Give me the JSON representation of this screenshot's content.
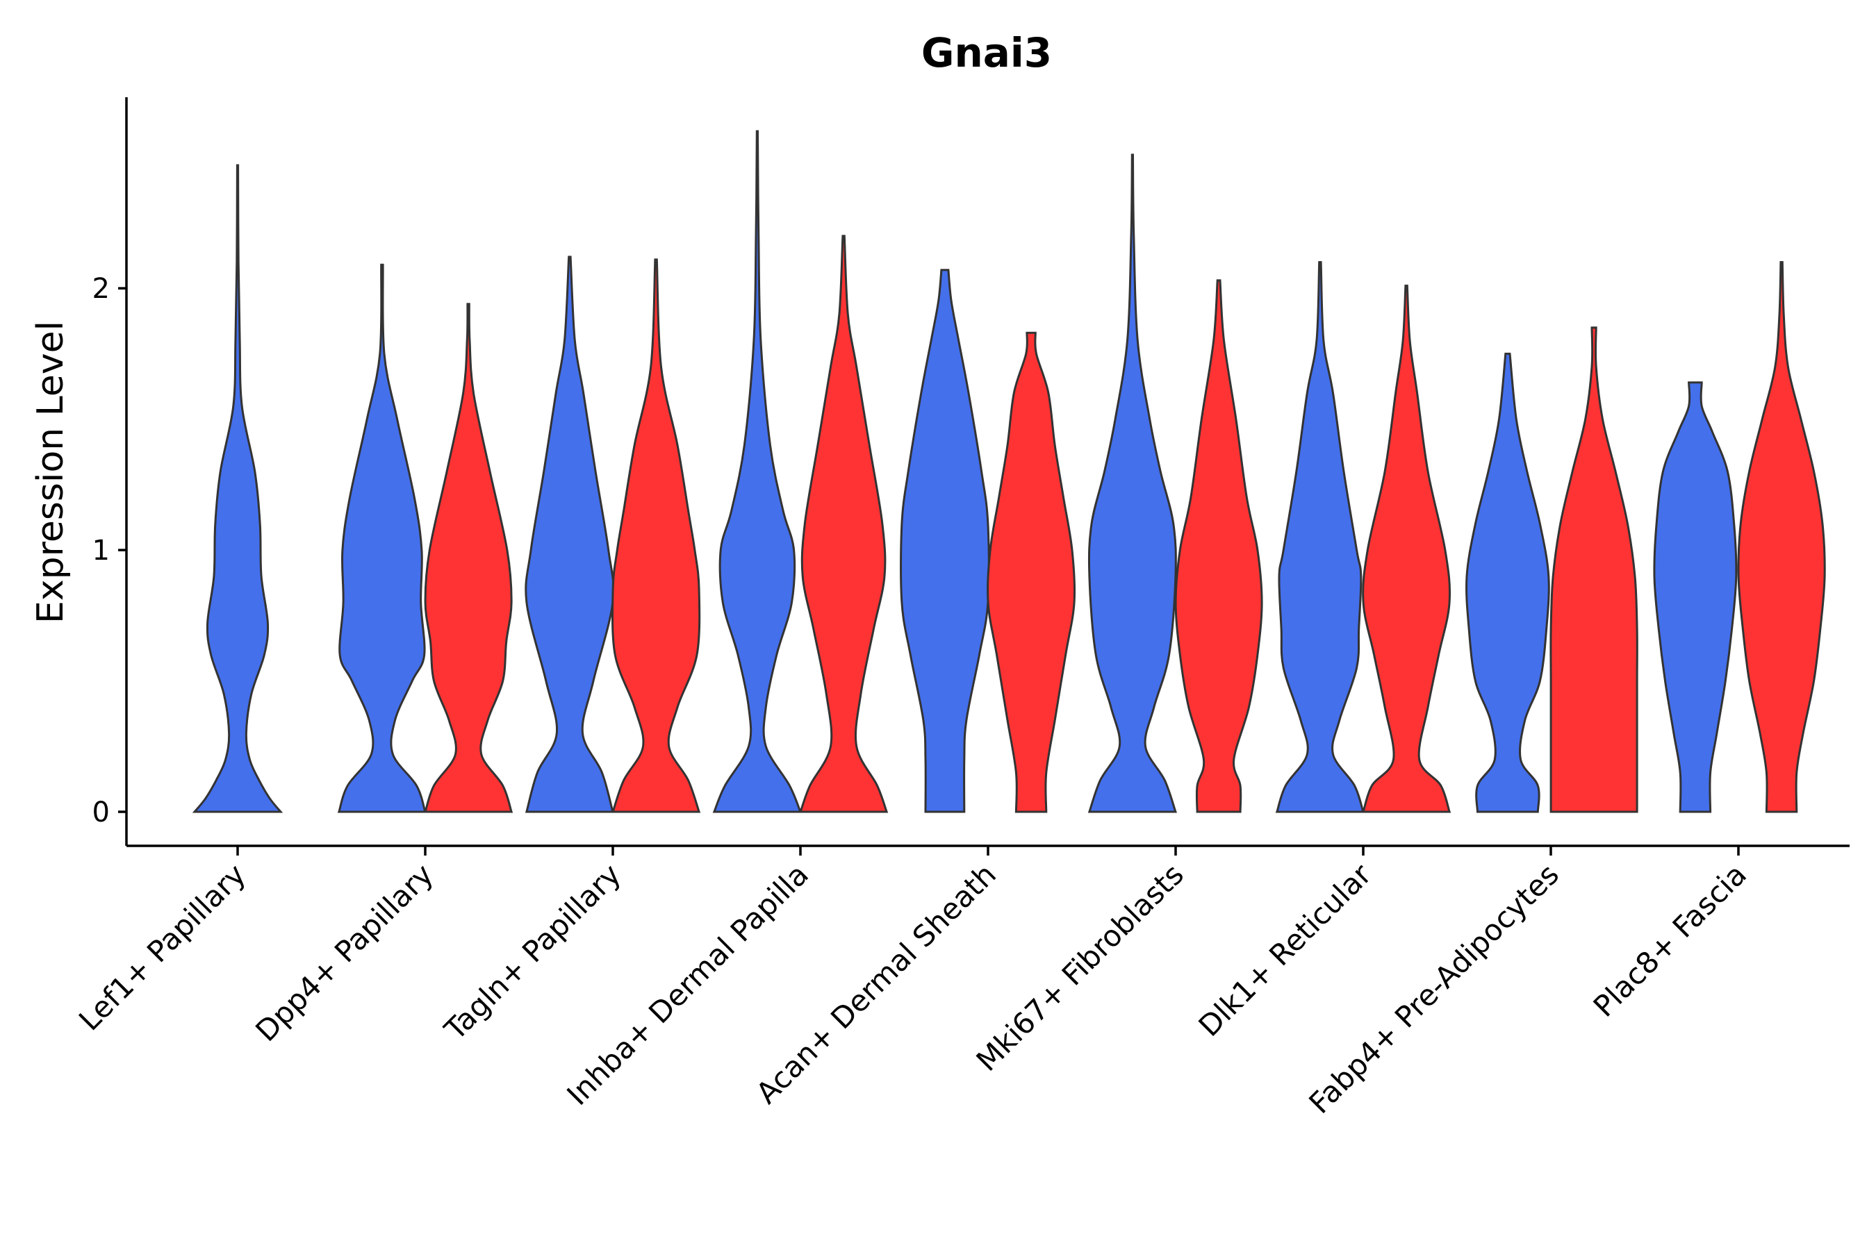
{
  "chart_data": {
    "type": "violin",
    "title": "Gnai3",
    "xlabel": "",
    "ylabel": "Expression Level",
    "ylim": [
      -0.13,
      2.73
    ],
    "yticks": [
      0,
      1,
      2
    ],
    "grid": false,
    "legend": "none",
    "colors": {
      "group_a": "#4470EC",
      "group_b": "#FF3333",
      "outline": "#333333"
    },
    "categories": [
      "Lef1+ Papillary",
      "Dpp4+ Papillary",
      "Tagln+ Papillary",
      "Inhba+ Dermal Papilla",
      "Acan+ Dermal Sheath",
      "Mki67+ Fibroblasts",
      "Dlk1+ Reticular",
      "Fabp4+ Pre-Adipocytes",
      "Plac8+ Fascia"
    ],
    "violins": [
      {
        "category": 0,
        "group": "a",
        "offset": 0,
        "profile": [
          [
            0,
            1
          ],
          [
            0.05,
            0.75
          ],
          [
            0.12,
            0.5
          ],
          [
            0.2,
            0.28
          ],
          [
            0.3,
            0.2
          ],
          [
            0.45,
            0.32
          ],
          [
            0.6,
            0.62
          ],
          [
            0.72,
            0.7
          ],
          [
            0.9,
            0.55
          ],
          [
            1.1,
            0.52
          ],
          [
            1.3,
            0.4
          ],
          [
            1.55,
            0.1
          ],
          [
            1.8,
            0.05
          ],
          [
            2.1,
            0.02
          ],
          [
            2.47,
            0.01
          ]
        ]
      },
      {
        "category": 1,
        "group": "a",
        "offset": -0.23,
        "profile": [
          [
            0,
            1
          ],
          [
            0.1,
            0.8
          ],
          [
            0.22,
            0.25
          ],
          [
            0.35,
            0.3
          ],
          [
            0.5,
            0.7
          ],
          [
            0.6,
            0.98
          ],
          [
            0.8,
            0.9
          ],
          [
            1.0,
            0.92
          ],
          [
            1.2,
            0.75
          ],
          [
            1.5,
            0.35
          ],
          [
            1.75,
            0.05
          ],
          [
            2.09,
            0.02
          ]
        ]
      },
      {
        "category": 1,
        "group": "b",
        "offset": 0.23,
        "profile": [
          [
            0,
            1
          ],
          [
            0.1,
            0.8
          ],
          [
            0.22,
            0.3
          ],
          [
            0.35,
            0.45
          ],
          [
            0.5,
            0.8
          ],
          [
            0.65,
            0.88
          ],
          [
            0.8,
            1.0
          ],
          [
            1.0,
            0.9
          ],
          [
            1.3,
            0.5
          ],
          [
            1.6,
            0.12
          ],
          [
            1.8,
            0.03
          ],
          [
            1.94,
            0.02
          ]
        ]
      },
      {
        "category": 2,
        "group": "a",
        "offset": -0.23,
        "profile": [
          [
            0,
            1
          ],
          [
            0.15,
            0.75
          ],
          [
            0.3,
            0.3
          ],
          [
            0.5,
            0.55
          ],
          [
            0.8,
            1.0
          ],
          [
            1.0,
            0.9
          ],
          [
            1.3,
            0.6
          ],
          [
            1.6,
            0.32
          ],
          [
            1.8,
            0.12
          ],
          [
            2.12,
            0.02
          ]
        ]
      },
      {
        "category": 2,
        "group": "b",
        "offset": 0.23,
        "profile": [
          [
            0,
            1
          ],
          [
            0.12,
            0.75
          ],
          [
            0.25,
            0.3
          ],
          [
            0.4,
            0.5
          ],
          [
            0.6,
            0.95
          ],
          [
            0.85,
            1.0
          ],
          [
            1.0,
            0.9
          ],
          [
            1.15,
            0.75
          ],
          [
            1.4,
            0.5
          ],
          [
            1.7,
            0.12
          ],
          [
            2.11,
            0.02
          ]
        ]
      },
      {
        "category": 3,
        "group": "a",
        "offset": -0.23,
        "profile": [
          [
            0,
            1
          ],
          [
            0.1,
            0.75
          ],
          [
            0.25,
            0.2
          ],
          [
            0.4,
            0.2
          ],
          [
            0.6,
            0.45
          ],
          [
            0.8,
            0.8
          ],
          [
            1.0,
            0.85
          ],
          [
            1.15,
            0.6
          ],
          [
            1.4,
            0.3
          ],
          [
            1.8,
            0.08
          ],
          [
            2.2,
            0.03
          ],
          [
            2.6,
            0.01
          ]
        ]
      },
      {
        "category": 3,
        "group": "b",
        "offset": 0.23,
        "profile": [
          [
            0,
            1
          ],
          [
            0.1,
            0.78
          ],
          [
            0.25,
            0.3
          ],
          [
            0.45,
            0.4
          ],
          [
            0.7,
            0.7
          ],
          [
            0.9,
            0.95
          ],
          [
            1.1,
            0.9
          ],
          [
            1.4,
            0.6
          ],
          [
            1.7,
            0.3
          ],
          [
            1.9,
            0.1
          ],
          [
            2.2,
            0.02
          ]
        ]
      },
      {
        "category": 4,
        "group": "a",
        "offset": -0.23,
        "profile": [
          [
            0,
            0.45
          ],
          [
            0.2,
            0.45
          ],
          [
            0.35,
            0.5
          ],
          [
            0.6,
            0.8
          ],
          [
            0.8,
            1.0
          ],
          [
            1.1,
            1.0
          ],
          [
            1.3,
            0.85
          ],
          [
            1.6,
            0.55
          ],
          [
            1.8,
            0.32
          ],
          [
            1.95,
            0.15
          ],
          [
            2.07,
            0.08
          ]
        ]
      },
      {
        "category": 4,
        "group": "b",
        "offset": 0.23,
        "profile": [
          [
            0,
            0.35
          ],
          [
            0.15,
            0.35
          ],
          [
            0.35,
            0.55
          ],
          [
            0.6,
            0.8
          ],
          [
            0.8,
            1.0
          ],
          [
            1.0,
            0.95
          ],
          [
            1.2,
            0.75
          ],
          [
            1.4,
            0.55
          ],
          [
            1.6,
            0.4
          ],
          [
            1.75,
            0.12
          ],
          [
            1.83,
            0.1
          ]
        ]
      },
      {
        "category": 5,
        "group": "a",
        "offset": -0.23,
        "profile": [
          [
            0,
            1
          ],
          [
            0.12,
            0.75
          ],
          [
            0.25,
            0.3
          ],
          [
            0.4,
            0.5
          ],
          [
            0.6,
            0.85
          ],
          [
            0.9,
            1.0
          ],
          [
            1.1,
            0.95
          ],
          [
            1.3,
            0.65
          ],
          [
            1.5,
            0.4
          ],
          [
            1.8,
            0.12
          ],
          [
            2.2,
            0.03
          ],
          [
            2.51,
            0.01
          ]
        ]
      },
      {
        "category": 5,
        "group": "b",
        "offset": 0.23,
        "profile": [
          [
            0,
            0.5
          ],
          [
            0.1,
            0.5
          ],
          [
            0.2,
            0.35
          ],
          [
            0.4,
            0.7
          ],
          [
            0.6,
            0.9
          ],
          [
            0.8,
            1.0
          ],
          [
            1.0,
            0.9
          ],
          [
            1.2,
            0.65
          ],
          [
            1.5,
            0.4
          ],
          [
            1.8,
            0.12
          ],
          [
            2.03,
            0.03
          ]
        ]
      },
      {
        "category": 6,
        "group": "a",
        "offset": -0.23,
        "profile": [
          [
            0,
            1
          ],
          [
            0.1,
            0.8
          ],
          [
            0.22,
            0.3
          ],
          [
            0.35,
            0.45
          ],
          [
            0.55,
            0.85
          ],
          [
            0.7,
            0.9
          ],
          [
            0.9,
            0.95
          ],
          [
            1.0,
            0.85
          ],
          [
            1.3,
            0.55
          ],
          [
            1.6,
            0.3
          ],
          [
            1.8,
            0.08
          ],
          [
            2.1,
            0.02
          ]
        ]
      },
      {
        "category": 6,
        "group": "b",
        "offset": 0.23,
        "profile": [
          [
            0,
            1
          ],
          [
            0.1,
            0.8
          ],
          [
            0.2,
            0.3
          ],
          [
            0.4,
            0.5
          ],
          [
            0.6,
            0.75
          ],
          [
            0.8,
            1.0
          ],
          [
            1.0,
            0.9
          ],
          [
            1.3,
            0.5
          ],
          [
            1.6,
            0.25
          ],
          [
            1.8,
            0.08
          ],
          [
            2.01,
            0.02
          ]
        ]
      },
      {
        "category": 7,
        "group": "a",
        "offset": -0.23,
        "profile": [
          [
            0,
            0.7
          ],
          [
            0.1,
            0.7
          ],
          [
            0.2,
            0.3
          ],
          [
            0.35,
            0.4
          ],
          [
            0.5,
            0.75
          ],
          [
            0.7,
            0.9
          ],
          [
            0.9,
            0.95
          ],
          [
            1.1,
            0.75
          ],
          [
            1.3,
            0.45
          ],
          [
            1.5,
            0.2
          ],
          [
            1.75,
            0.05
          ]
        ]
      },
      {
        "category": 7,
        "group": "b",
        "offset": 0.23,
        "profile": [
          [
            0,
            1
          ],
          [
            0.3,
            1
          ],
          [
            0.5,
            1
          ],
          [
            0.7,
            1
          ],
          [
            0.9,
            0.95
          ],
          [
            1.1,
            0.78
          ],
          [
            1.3,
            0.5
          ],
          [
            1.5,
            0.2
          ],
          [
            1.7,
            0.05
          ],
          [
            1.85,
            0.05
          ]
        ]
      },
      {
        "category": 8,
        "group": "a",
        "offset": -0.23,
        "profile": [
          [
            0,
            0.35
          ],
          [
            0.15,
            0.35
          ],
          [
            0.3,
            0.5
          ],
          [
            0.5,
            0.7
          ],
          [
            0.7,
            0.85
          ],
          [
            0.9,
            0.95
          ],
          [
            1.1,
            0.9
          ],
          [
            1.3,
            0.75
          ],
          [
            1.45,
            0.4
          ],
          [
            1.55,
            0.15
          ],
          [
            1.64,
            0.15
          ]
        ]
      },
      {
        "category": 8,
        "group": "b",
        "offset": 0.23,
        "profile": [
          [
            0,
            0.35
          ],
          [
            0.15,
            0.35
          ],
          [
            0.3,
            0.5
          ],
          [
            0.5,
            0.75
          ],
          [
            0.7,
            0.9
          ],
          [
            0.9,
            1.0
          ],
          [
            1.1,
            0.95
          ],
          [
            1.3,
            0.75
          ],
          [
            1.5,
            0.45
          ],
          [
            1.7,
            0.15
          ],
          [
            1.9,
            0.05
          ],
          [
            2.1,
            0.02
          ]
        ]
      }
    ]
  }
}
